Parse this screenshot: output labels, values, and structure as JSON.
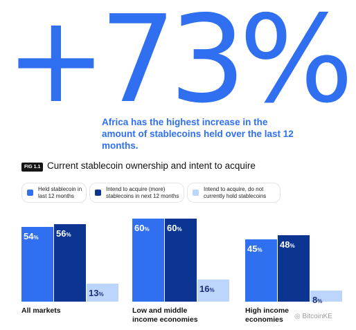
{
  "hero": {
    "stat": "+73%"
  },
  "subtitle": "Africa has the highest increase in the amount of stablecoins held over the last 12 months.",
  "figure": {
    "tag": "FIG 1.1",
    "title": "Current stablecoin ownership and intent to acquire"
  },
  "colors": {
    "accent": "#2f6ff0",
    "held": "#2f6ff0",
    "intend": "#0c3592",
    "non_holder": "#bcd5fb"
  },
  "chart_data": {
    "type": "bar",
    "title": "Current stablecoin ownership and intent to acquire",
    "categories": [
      "All markets",
      "Low and middle income economies",
      "High income economies"
    ],
    "series": [
      {
        "name": "Held stablecoin in last 12 months",
        "values": [
          54,
          60,
          45
        ],
        "labels": [
          "54%",
          "60%",
          "45%"
        ],
        "color": "#2f6ff0"
      },
      {
        "name": "Intend to acquire (more) stablecoins in next 12 months",
        "values": [
          56,
          60,
          48
        ],
        "labels": [
          "56%",
          "60%",
          "48%"
        ],
        "color": "#0c3592"
      },
      {
        "name": "Intend to acquire, do not currently hold stablecoins",
        "values": [
          13,
          16,
          8
        ],
        "labels": [
          "13%",
          "16%",
          "8%"
        ],
        "color": "#bcd5fb"
      }
    ],
    "category_lines": [
      [
        "All markets"
      ],
      [
        "Low and middle",
        "income economies"
      ],
      [
        "High income",
        "economies"
      ]
    ],
    "ylim": [
      0,
      60
    ],
    "grid": false,
    "legend_position": "top"
  },
  "watermark": "BitcoinKE"
}
